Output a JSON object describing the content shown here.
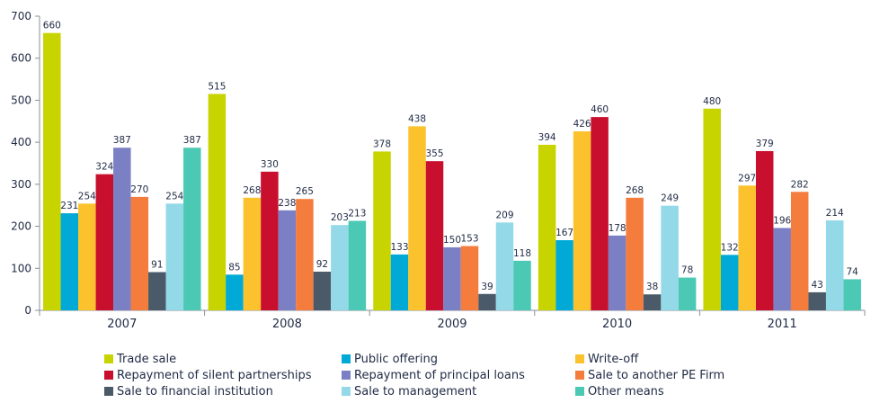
{
  "chart_data": {
    "type": "bar",
    "title": "",
    "xlabel": "",
    "ylabel": "",
    "ylim": [
      0,
      700
    ],
    "yticks": [
      0,
      100,
      200,
      300,
      400,
      500,
      600,
      700
    ],
    "grid": false,
    "legend_position": "bottom",
    "categories": [
      "2007",
      "2008",
      "2009",
      "2010",
      "2011"
    ],
    "series": [
      {
        "name": "Trade sale",
        "color": "#c8d400",
        "values": [
          660,
          515,
          378,
          394,
          480
        ]
      },
      {
        "name": "Public offering",
        "color": "#00a9d6",
        "values": [
          231,
          85,
          133,
          167,
          132
        ]
      },
      {
        "name": "Write-off",
        "color": "#fcc22d",
        "values": [
          254,
          268,
          438,
          426,
          297
        ]
      },
      {
        "name": "Repayment of silent partnerships",
        "color": "#c8102e",
        "values": [
          324,
          330,
          355,
          460,
          379
        ]
      },
      {
        "name": "Repayment of principal loans",
        "color": "#7b7fc4",
        "values": [
          387,
          238,
          150,
          178,
          196
        ]
      },
      {
        "name": "Sale to another PE Firm",
        "color": "#f47c3c",
        "values": [
          270,
          265,
          153,
          268,
          282
        ]
      },
      {
        "name": "Sale to financial institution",
        "color": "#4a5a68",
        "values": [
          91,
          92,
          39,
          38,
          43
        ]
      },
      {
        "name": "Sale to management",
        "color": "#93d9e8",
        "values": [
          254,
          203,
          209,
          249,
          214
        ]
      },
      {
        "name": "Other means",
        "color": "#4cc9b4",
        "values": [
          387,
          213,
          118,
          78,
          74
        ]
      }
    ]
  }
}
